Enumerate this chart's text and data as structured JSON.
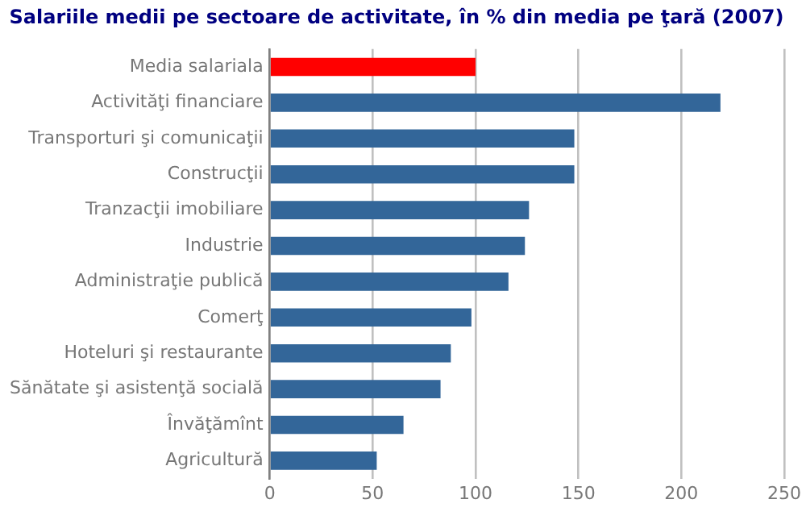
{
  "chart_data": {
    "type": "bar",
    "orientation": "horizontal",
    "title": "Salariile medii pe sectoare de activitate, în % din media pe ţară (2007)",
    "categories": [
      "Media salariala",
      "Activităţi financiare",
      "Transporturi şi comunicaţii",
      "Construcţii",
      "Tranzacţii imobiliare",
      "Industrie",
      "Administraţie publică",
      "Comerţ",
      "Hoteluri şi restaurante",
      "Sănătate şi asistenţă socială",
      "Învăţămînt",
      "Agricultură"
    ],
    "values": [
      100,
      219,
      148,
      148,
      126,
      124,
      116,
      98,
      88,
      83,
      65,
      52
    ],
    "colors": [
      "#ff0000",
      "#336699",
      "#336699",
      "#336699",
      "#336699",
      "#336699",
      "#336699",
      "#336699",
      "#336699",
      "#336699",
      "#336699",
      "#336699"
    ],
    "xlim": [
      0,
      250
    ],
    "xticks": [
      0,
      50,
      100,
      150,
      200,
      250
    ],
    "grid": "x",
    "legend": false
  }
}
